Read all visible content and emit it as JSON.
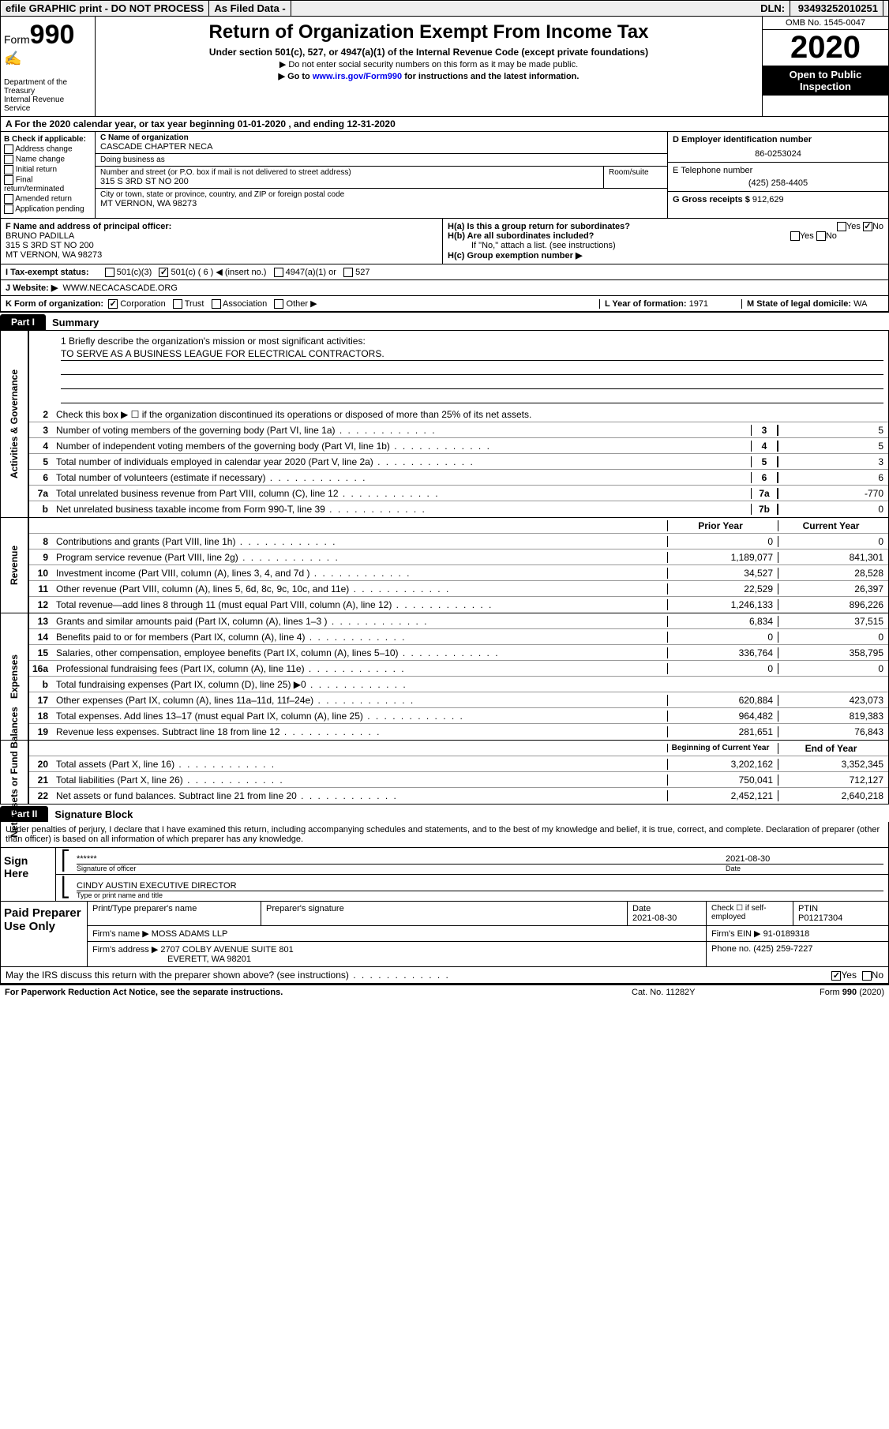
{
  "topbar": {
    "efile": "efile GRAPHIC print - DO NOT PROCESS",
    "asfiled": "As Filed Data -",
    "dln_label": "DLN:",
    "dln": "93493252010251"
  },
  "header": {
    "form_prefix": "Form",
    "form_number": "990",
    "dept": "Department of the Treasury",
    "irs": "Internal Revenue Service",
    "title": "Return of Organization Exempt From Income Tax",
    "subtitle": "Under section 501(c), 527, or 4947(a)(1) of the Internal Revenue Code (except private foundations)",
    "note1": "▶ Do not enter social security numbers on this form as it may be made public.",
    "note2_pre": "▶ Go to ",
    "note2_link": "www.irs.gov/Form990",
    "note2_post": " for instructions and the latest information.",
    "omb": "OMB No. 1545-0047",
    "year": "2020",
    "inspect": "Open to Public Inspection"
  },
  "rowA": "A  For the 2020 calendar year, or tax year beginning 01-01-2020   , and ending 12-31-2020",
  "sectionB": {
    "label": "B Check if applicable:",
    "opts": [
      "Address change",
      "Name change",
      "Initial return",
      "Final return/terminated",
      "Amended return",
      "Application pending"
    ]
  },
  "sectionC": {
    "name_label": "C Name of organization",
    "name": "CASCADE CHAPTER NECA",
    "dba_label": "Doing business as",
    "dba": "",
    "street_label": "Number and street (or P.O. box if mail is not delivered to street address)",
    "room_label": "Room/suite",
    "street": "315 S 3RD ST NO 200",
    "city_label": "City or town, state or province, country, and ZIP or foreign postal code",
    "city": "MT VERNON, WA  98273"
  },
  "sectionD": {
    "label": "D Employer identification number",
    "ein": "86-0253024"
  },
  "sectionE": {
    "label": "E Telephone number",
    "phone": "(425) 258-4405"
  },
  "sectionG": {
    "label": "G Gross receipts $",
    "amount": "912,629"
  },
  "sectionF": {
    "label": "F  Name and address of principal officer:",
    "name": "BRUNO PADILLA",
    "street": "315 S 3RD ST NO 200",
    "city": "MT VERNON, WA  98273"
  },
  "sectionH": {
    "ha": "H(a)  Is this a group return for subordinates?",
    "hb": "H(b)  Are all subordinates included?",
    "hb_note": "If \"No,\" attach a list. (see instructions)",
    "hc": "H(c)  Group exemption number ▶",
    "ha_yes": false,
    "ha_no": true
  },
  "rowI": {
    "label": "I  Tax-exempt status:",
    "c3": "501(c)(3)",
    "c": "501(c) ( 6 ) ◀ (insert no.)",
    "a1": "4947(a)(1) or",
    "s527": "527",
    "c_checked": true
  },
  "rowJ": {
    "label": "J  Website: ▶",
    "url": "WWW.NECACASCADE.ORG"
  },
  "rowK": {
    "label": "K Form of organization:",
    "corp": "Corporation",
    "trust": "Trust",
    "assoc": "Association",
    "other": "Other ▶",
    "corp_checked": true
  },
  "rowL": {
    "label": "L Year of formation:",
    "val": "1971"
  },
  "rowM": {
    "label": "M State of legal domicile:",
    "val": "WA"
  },
  "partI": {
    "tab": "Part I",
    "title": "Summary"
  },
  "summary": {
    "s1_label": "1 Briefly describe the organization's mission or most significant activities:",
    "s1_text": "TO SERVE AS A BUSINESS LEAGUE FOR ELECTRICAL CONTRACTORS.",
    "s2": "Check this box ▶ ☐ if the organization discontinued its operations or disposed of more than 25% of its net assets.",
    "lines_gov": [
      {
        "n": "3",
        "t": "Number of voting members of the governing body (Part VI, line 1a)",
        "b": "3",
        "v": "5"
      },
      {
        "n": "4",
        "t": "Number of independent voting members of the governing body (Part VI, line 1b)",
        "b": "4",
        "v": "5"
      },
      {
        "n": "5",
        "t": "Total number of individuals employed in calendar year 2020 (Part V, line 2a)",
        "b": "5",
        "v": "3"
      },
      {
        "n": "6",
        "t": "Total number of volunteers (estimate if necessary)",
        "b": "6",
        "v": "6"
      },
      {
        "n": "7a",
        "t": "Total unrelated business revenue from Part VIII, column (C), line 12",
        "b": "7a",
        "v": "-770"
      },
      {
        "n": "b",
        "t": "Net unrelated business taxable income from Form 990-T, line 39",
        "b": "7b",
        "v": "0"
      }
    ],
    "col_prior": "Prior Year",
    "col_current": "Current Year",
    "revenue": [
      {
        "n": "8",
        "t": "Contributions and grants (Part VIII, line 1h)",
        "p": "0",
        "c": "0"
      },
      {
        "n": "9",
        "t": "Program service revenue (Part VIII, line 2g)",
        "p": "1,189,077",
        "c": "841,301"
      },
      {
        "n": "10",
        "t": "Investment income (Part VIII, column (A), lines 3, 4, and 7d )",
        "p": "34,527",
        "c": "28,528"
      },
      {
        "n": "11",
        "t": "Other revenue (Part VIII, column (A), lines 5, 6d, 8c, 9c, 10c, and 11e)",
        "p": "22,529",
        "c": "26,397"
      },
      {
        "n": "12",
        "t": "Total revenue—add lines 8 through 11 (must equal Part VIII, column (A), line 12)",
        "p": "1,246,133",
        "c": "896,226"
      }
    ],
    "expenses": [
      {
        "n": "13",
        "t": "Grants and similar amounts paid (Part IX, column (A), lines 1–3 )",
        "p": "6,834",
        "c": "37,515"
      },
      {
        "n": "14",
        "t": "Benefits paid to or for members (Part IX, column (A), line 4)",
        "p": "0",
        "c": "0"
      },
      {
        "n": "15",
        "t": "Salaries, other compensation, employee benefits (Part IX, column (A), lines 5–10)",
        "p": "336,764",
        "c": "358,795"
      },
      {
        "n": "16a",
        "t": "Professional fundraising fees (Part IX, column (A), line 11e)",
        "p": "0",
        "c": "0"
      },
      {
        "n": "b",
        "t": "Total fundraising expenses (Part IX, column (D), line 25) ▶0",
        "p": "",
        "c": ""
      },
      {
        "n": "17",
        "t": "Other expenses (Part IX, column (A), lines 11a–11d, 11f–24e)",
        "p": "620,884",
        "c": "423,073"
      },
      {
        "n": "18",
        "t": "Total expenses. Add lines 13–17 (must equal Part IX, column (A), line 25)",
        "p": "964,482",
        "c": "819,383"
      },
      {
        "n": "19",
        "t": "Revenue less expenses. Subtract line 18 from line 12",
        "p": "281,651",
        "c": "76,843"
      }
    ],
    "col_begin": "Beginning of Current Year",
    "col_end": "End of Year",
    "netassets": [
      {
        "n": "20",
        "t": "Total assets (Part X, line 16)",
        "p": "3,202,162",
        "c": "3,352,345"
      },
      {
        "n": "21",
        "t": "Total liabilities (Part X, line 26)",
        "p": "750,041",
        "c": "712,127"
      },
      {
        "n": "22",
        "t": "Net assets or fund balances. Subtract line 21 from line 20",
        "p": "2,452,121",
        "c": "2,640,218"
      }
    ],
    "vlabels": {
      "gov": "Activities & Governance",
      "rev": "Revenue",
      "exp": "Expenses",
      "na": "Net Assets or Fund Balances"
    }
  },
  "partII": {
    "tab": "Part II",
    "title": "Signature Block"
  },
  "sig": {
    "disclaim": "Under penalties of perjury, I declare that I have examined this return, including accompanying schedules and statements, and to the best of my knowledge and belief, it is true, correct, and complete. Declaration of preparer (other than officer) is based on all information of which preparer has any knowledge.",
    "sign_here": "Sign Here",
    "stars": "******",
    "sig_officer": "Signature of officer",
    "date_label": "Date",
    "date": "2021-08-30",
    "name_title": "CINDY AUSTIN  EXECUTIVE DIRECTOR",
    "type_label": "Type or print name and title"
  },
  "prep": {
    "label": "Paid Preparer Use Only",
    "h_name": "Print/Type preparer's name",
    "h_sig": "Preparer's signature",
    "h_date": "Date",
    "date": "2021-08-30",
    "h_check": "Check ☐ if self-employed",
    "h_ptin": "PTIN",
    "ptin": "P01217304",
    "firm_label": "Firm's name    ▶",
    "firm": "MOSS ADAMS LLP",
    "ein_label": "Firm's EIN ▶",
    "ein": "91-0189318",
    "addr_label": "Firm's address ▶",
    "addr1": "2707 COLBY AVENUE SUITE 801",
    "addr2": "EVERETT, WA  98201",
    "phone_label": "Phone no.",
    "phone": "(425) 259-7227"
  },
  "discuss": {
    "q": "May the IRS discuss this return with the preparer shown above? (see instructions)",
    "yes": true
  },
  "footer": {
    "pra": "For Paperwork Reduction Act Notice, see the separate instructions.",
    "cat": "Cat. No. 11282Y",
    "form": "Form 990 (2020)"
  }
}
